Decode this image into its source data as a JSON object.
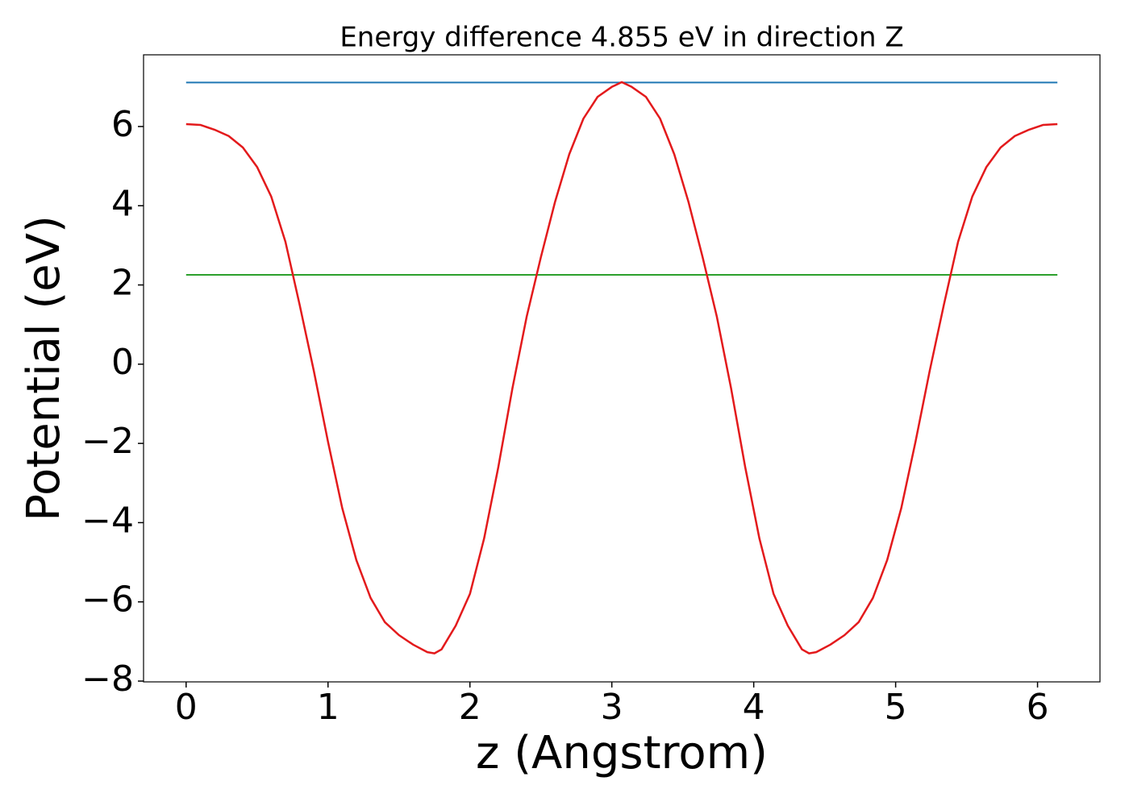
{
  "chart_data": {
    "type": "line",
    "title": "Energy difference 4.855 eV in direction Z",
    "x_label": "z (Angstrom)",
    "y_label": "Potential (eV)",
    "series": [
      {
        "color": "#1f77b4",
        "x": [
          0,
          6.14
        ],
        "values": [
          7.11,
          7.11
        ]
      },
      {
        "color": "#2ca02c",
        "x": [
          0,
          6.14
        ],
        "values": [
          2.255,
          2.255
        ]
      },
      {
        "color": "#e31a1c",
        "x": [
          0,
          0.1,
          0.2,
          0.3,
          0.4,
          0.5,
          0.6,
          0.7,
          0.8,
          0.9,
          1.0,
          1.1,
          1.2,
          1.3,
          1.4,
          1.5,
          1.6,
          1.7,
          1.75,
          1.8,
          1.9,
          2.0,
          2.1,
          2.2,
          2.3,
          2.4,
          2.5,
          2.6,
          2.7,
          2.8,
          2.9,
          3.0,
          3.07,
          3.14,
          3.24,
          3.34,
          3.44,
          3.54,
          3.64,
          3.74,
          3.84,
          3.94,
          4.04,
          4.14,
          4.24,
          4.34,
          4.39,
          4.44,
          4.54,
          4.64,
          4.74,
          4.84,
          4.94,
          5.04,
          5.14,
          5.24,
          5.34,
          5.44,
          5.54,
          5.64,
          5.74,
          5.84,
          5.94,
          6.04,
          6.14
        ],
        "values": [
          6.06,
          6.04,
          5.92,
          5.76,
          5.47,
          4.98,
          4.23,
          3.09,
          1.5,
          -0.17,
          -1.96,
          -3.63,
          -4.95,
          -5.9,
          -6.51,
          -6.84,
          -7.08,
          -7.27,
          -7.3,
          -7.2,
          -6.6,
          -5.8,
          -4.4,
          -2.6,
          -0.6,
          1.2,
          2.7,
          4.1,
          5.3,
          6.2,
          6.75,
          7.0,
          7.12,
          7.0,
          6.75,
          6.2,
          5.3,
          4.1,
          2.7,
          1.2,
          -0.6,
          -2.6,
          -4.4,
          -5.8,
          -6.6,
          -7.2,
          -7.3,
          -7.27,
          -7.08,
          -6.84,
          -6.51,
          -5.9,
          -4.95,
          -3.63,
          -1.96,
          -0.17,
          1.5,
          3.09,
          4.23,
          4.98,
          5.47,
          5.76,
          5.92,
          6.04,
          6.06
        ]
      }
    ],
    "xlim": [
      -0.3,
      6.44
    ],
    "xticks": [
      0,
      1,
      2,
      3,
      4,
      5,
      6
    ],
    "ylim": [
      -8.02,
      7.81
    ],
    "yticks": [
      {
        "value": -8,
        "label": "−8"
      },
      {
        "value": -6,
        "label": "−6"
      },
      {
        "value": -4,
        "label": "−4"
      },
      {
        "value": -2,
        "label": "−2"
      },
      0,
      2,
      4,
      6
    ],
    "grid": false
  }
}
